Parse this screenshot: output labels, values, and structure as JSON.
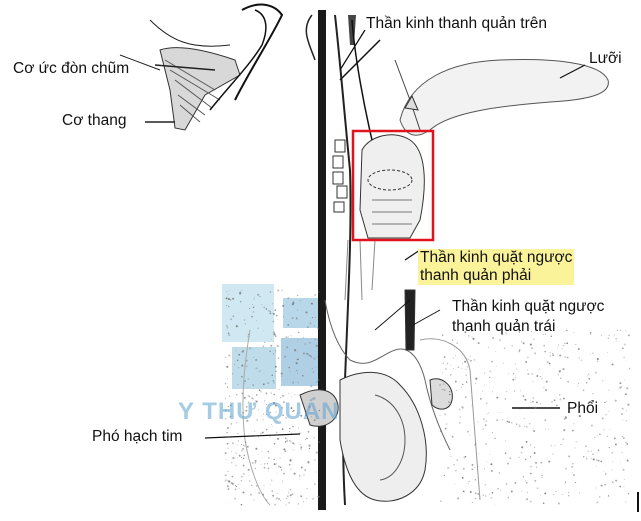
{
  "labels": {
    "sternocleidomastoid": "Cơ ức đòn chũm",
    "trapezius": "Cơ thang",
    "superior_laryngeal_nerve": "Thần kinh thanh quản trên",
    "tongue": "Lưỡi",
    "right_recurrent_line1": "Thần kinh quặt ngược",
    "right_recurrent_line2": "thanh quản phải",
    "left_recurrent_line1": "Thần kinh quặt ngược",
    "left_recurrent_line2": "thanh quản trái",
    "lung": "Phổi",
    "pericardial_node": "Phó hạch tim"
  },
  "watermark": "Y THƯ QUÁN",
  "colors": {
    "highlight": "#fbf39a",
    "red_box": "#e0141c",
    "watermark": "#5ca0cd"
  }
}
